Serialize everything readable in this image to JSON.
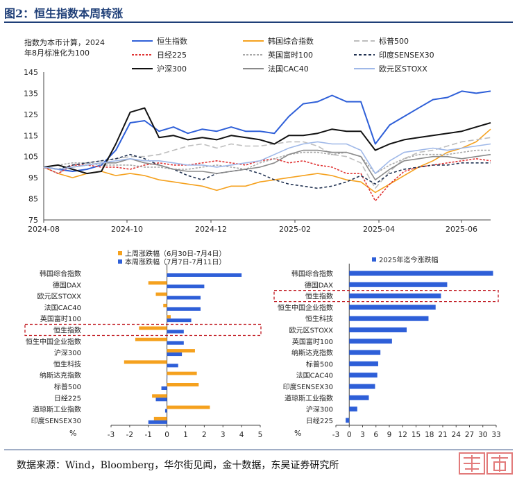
{
  "title": "图2：恒生指数本周转涨",
  "source": "数据来源：Wind，Bloomberg，华尔街见闻，金十数据，东吴证券研究所",
  "chart_data": [
    {
      "type": "line",
      "note": "指数为本币计算，2024年8月标准化为100",
      "ylim": [
        75,
        145
      ],
      "yticks": [
        75,
        85,
        95,
        105,
        115,
        125,
        135,
        145
      ],
      "xticks": [
        "2024-08",
        "2024-10",
        "2024-12",
        "2025-02",
        "2025-04",
        "2025-06"
      ],
      "x": [
        "2024-08",
        "2024-08",
        "2024-08",
        "2024-08",
        "2024-09",
        "2024-09",
        "2024-09",
        "2024-10",
        "2024-10",
        "2024-10",
        "2024-11",
        "2024-11",
        "2024-11",
        "2024-12",
        "2024-12",
        "2025-01",
        "2025-01",
        "2025-02",
        "2025-02",
        "2025-02",
        "2025-03",
        "2025-03",
        "2025-04",
        "2025-04",
        "2025-04",
        "2025-04",
        "2025-05",
        "2025-05",
        "2025-06",
        "2025-06",
        "2025-07",
        "2025-07"
      ],
      "series": [
        {
          "name": "恒生指数",
          "color": "#2e5fd8",
          "dash": "",
          "values": [
            100,
            99,
            98,
            99,
            101,
            108,
            121,
            122,
            117,
            119,
            116,
            118,
            117,
            119,
            117,
            117,
            116,
            124,
            130,
            131,
            134,
            131,
            131,
            111,
            120,
            124,
            128,
            132,
            133,
            136,
            135,
            136
          ]
        },
        {
          "name": "韩国综合指数",
          "color": "#f5a11e",
          "dash": "",
          "values": [
            100,
            97,
            95,
            97,
            98,
            96,
            97,
            96,
            94,
            93,
            92,
            91,
            89,
            91,
            91,
            93,
            94,
            95,
            96,
            97,
            96,
            94,
            93,
            88,
            92,
            96,
            100,
            103,
            107,
            109,
            112,
            118
          ]
        },
        {
          "name": "标普500",
          "color": "#bdbdbd",
          "dash": "8 4",
          "values": [
            100,
            97,
            101,
            102,
            103,
            104,
            105,
            105,
            106,
            108,
            110,
            111,
            109,
            111,
            110,
            110,
            111,
            112,
            112,
            110,
            106,
            105,
            102,
            90,
            98,
            104,
            107,
            108,
            110,
            112,
            113,
            114
          ]
        },
        {
          "name": "日经225",
          "color": "#e03333",
          "dash": "3 2",
          "values": [
            100,
            97,
            101,
            101,
            100,
            100,
            99,
            101,
            102,
            101,
            101,
            102,
            103,
            102,
            101,
            103,
            104,
            102,
            103,
            101,
            100,
            97,
            97,
            84,
            92,
            98,
            100,
            101,
            102,
            103,
            104,
            103
          ]
        },
        {
          "name": "英国富时100",
          "color": "#a8a8a8",
          "dash": "3 2",
          "values": [
            100,
            101,
            102,
            102,
            101,
            101,
            101,
            100,
            100,
            99,
            99,
            100,
            101,
            100,
            99,
            102,
            104,
            106,
            107,
            107,
            106,
            107,
            105,
            97,
            101,
            104,
            106,
            106,
            106,
            107,
            108,
            108
          ]
        },
        {
          "name": "印度SENSEX30",
          "color": "#1f3050",
          "dash": "4 3",
          "values": [
            100,
            99,
            101,
            102,
            103,
            104,
            106,
            104,
            101,
            99,
            96,
            94,
            97,
            98,
            99,
            97,
            94,
            92,
            91,
            90,
            91,
            93,
            96,
            92,
            97,
            99,
            100,
            101,
            101,
            102,
            102,
            102
          ]
        },
        {
          "name": "沪深300",
          "color": "#111111",
          "dash": "",
          "values": [
            100,
            101,
            99,
            97,
            98,
            111,
            126,
            128,
            114,
            115,
            113,
            114,
            113,
            115,
            114,
            113,
            111,
            115,
            115,
            116,
            118,
            117,
            117,
            108,
            111,
            113,
            114,
            115,
            116,
            117,
            119,
            121
          ]
        },
        {
          "name": "法国CAC40",
          "color": "#8a8a8a",
          "dash": "",
          "values": [
            100,
            99,
            100,
            101,
            102,
            102,
            104,
            102,
            101,
            99,
            98,
            98,
            97,
            98,
            99,
            100,
            102,
            106,
            108,
            108,
            107,
            107,
            105,
            94,
            99,
            103,
            104,
            105,
            105,
            104,
            105,
            106
          ]
        },
        {
          "name": "欧元区STOXX",
          "color": "#9fb8e8",
          "dash": "",
          "values": [
            100,
            99,
            100,
            101,
            102,
            103,
            104,
            103,
            103,
            102,
            101,
            101,
            100,
            101,
            102,
            103,
            106,
            109,
            111,
            112,
            111,
            111,
            108,
            97,
            103,
            107,
            108,
            109,
            108,
            109,
            110,
            111
          ]
        }
      ]
    },
    {
      "type": "bar",
      "orientation": "horizontal",
      "xlabel": "%",
      "xlim": [
        -3,
        5
      ],
      "xticks": [
        -3,
        -2,
        -1,
        0,
        1,
        2,
        3,
        4,
        5
      ],
      "categories": [
        "韩国综合指数",
        "德国DAX",
        "欧元区STOXX",
        "法国CAC40",
        "英国富时100",
        "恒生指数",
        "恒生中国企业指数",
        "沪深300",
        "恒生科技",
        "纳斯达克指数",
        "标普500",
        "日经225",
        "道琼斯工业指数",
        "印度SENSEX30"
      ],
      "highlight": "恒生指数",
      "series": [
        {
          "name": "上周涨跌幅（6月30日-7月4日）",
          "color": "#f5a11e",
          "values": [
            0.0,
            -1.0,
            -0.6,
            -0.2,
            0.2,
            -1.5,
            -1.7,
            1.5,
            -2.3,
            1.6,
            1.7,
            -0.8,
            2.3,
            -0.7
          ]
        },
        {
          "name": "本周涨跌幅（7月7日-7月11日）",
          "color": "#2e5fd8",
          "values": [
            4.0,
            2.0,
            1.8,
            1.8,
            1.3,
            0.9,
            0.9,
            0.8,
            0.6,
            0.0,
            -0.3,
            -0.6,
            -0.1,
            -1.0
          ]
        }
      ]
    },
    {
      "type": "bar",
      "orientation": "horizontal",
      "xlabel": "%",
      "xlim": [
        -3,
        33
      ],
      "xticks": [
        -3,
        0,
        3,
        6,
        9,
        12,
        15,
        18,
        21,
        24,
        27,
        30,
        33
      ],
      "categories": [
        "韩国综合指数",
        "德国DAX",
        "恒生指数",
        "恒生中国企业指数",
        "恒生科技",
        "欧元区STOXX",
        "英国富时100",
        "纳斯达克指数",
        "标普500",
        "法国CAC40",
        "印度SENSEX30",
        "道琼斯工业指数",
        "沪深300",
        "日经225"
      ],
      "highlight": "恒生指数",
      "series": [
        {
          "name": "2025年迄今涨跌幅",
          "color": "#2e5fd8",
          "values": [
            32.3,
            22.0,
            20.6,
            19.4,
            17.8,
            12.9,
            9.6,
            7.0,
            6.5,
            6.3,
            5.8,
            4.4,
            1.8,
            -0.8
          ]
        }
      ]
    }
  ]
}
